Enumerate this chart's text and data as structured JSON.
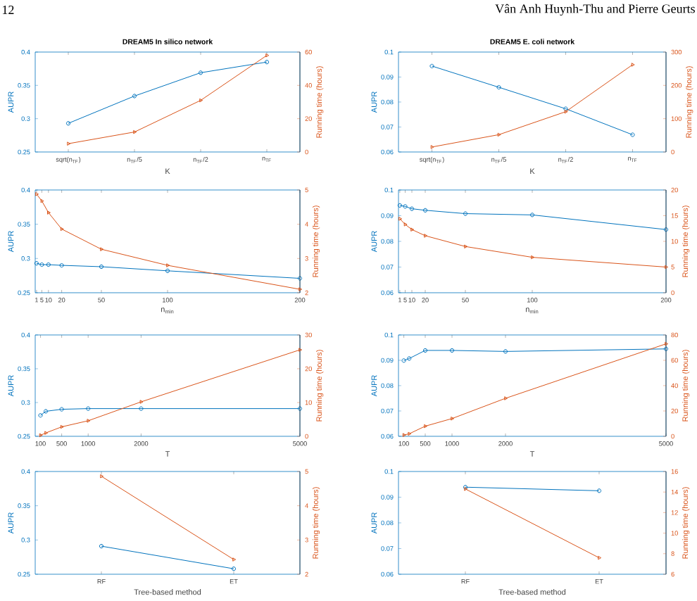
{
  "chart_data": [
    {
      "type": "line",
      "title": "DREAM5 In silico network",
      "xlabel": "K",
      "ylabel": "AUPR",
      "y2label": "Running time (hours)",
      "annotations": [
        "12",
        "Vân Anh Huynh-Thu and Pierre Geurts"
      ],
      "categories": [
        "sqrt(n$_{TF}$)",
        "n$_{TF}$/5",
        "n$_{TF}$/2",
        "n$_{TF}$"
      ],
      "ylim": [
        0.25,
        0.4
      ],
      "yticks": [
        0.25,
        0.3,
        0.35,
        0.4
      ],
      "y2lim": [
        0,
        60
      ],
      "y2ticks": [
        0,
        20,
        40,
        60
      ],
      "series": [
        {
          "color": "#0072bd",
          "marker": "circle",
          "line_style": "solid",
          "values": [
            0.293,
            0.334,
            0.369,
            0.385
          ]
        },
        {
          "color": "#d95319",
          "marker": "triangle",
          "line_style": "solid",
          "axis": "y2",
          "values": [
            5,
            12,
            31,
            58
          ]
        }
      ]
    },
    {
      "type": "line",
      "title": "DREAM5 E. coli network",
      "xlabel": "K",
      "ylabel": "AUPR",
      "y2label": "Running time (hours)",
      "categories": [
        "sqrt(n$_{TF}$)",
        "n$_{TF}$/5",
        "n$_{TF}$/2",
        "n$_{TF}$"
      ],
      "ylim": [
        0.06,
        0.1
      ],
      "yticks": [
        0.06,
        0.07,
        0.08,
        0.09,
        0.1
      ],
      "y2lim": [
        0,
        300
      ],
      "y2ticks": [
        0,
        100,
        200,
        300
      ],
      "series": [
        {
          "color": "#0072bd",
          "marker": "circle",
          "line_style": "solid",
          "values": [
            0.0944,
            0.0859,
            0.0773,
            0.0669
          ]
        },
        {
          "color": "#d95319",
          "marker": "triangle",
          "line_style": "solid",
          "axis": "y2",
          "values": [
            15,
            52,
            121,
            262
          ]
        }
      ]
    },
    {
      "type": "line",
      "xlabel": "n$_{min}$",
      "ylabel": "AUPR",
      "y2label": "Running time (hours)",
      "x": [
        1,
        5,
        10,
        20,
        50,
        100,
        200
      ],
      "xlim": [
        0,
        200
      ],
      "xticks": [
        1,
        5,
        10,
        20,
        50,
        100,
        200
      ],
      "ylim": [
        0.25,
        0.4
      ],
      "yticks": [
        0.25,
        0.3,
        0.35,
        0.4
      ],
      "y2lim": [
        2,
        5
      ],
      "y2ticks": [
        2,
        3,
        4,
        5
      ],
      "series": [
        {
          "color": "#0072bd",
          "marker": "circle",
          "line_style": "solid",
          "values": [
            0.293,
            0.291,
            0.291,
            0.29,
            0.288,
            0.282,
            0.271
          ]
        },
        {
          "color": "#d95319",
          "marker": "triangle",
          "line_style": "solid",
          "axis": "y2",
          "values": [
            4.88,
            4.68,
            4.34,
            3.86,
            3.27,
            2.8,
            2.1
          ]
        }
      ]
    },
    {
      "type": "line",
      "xlabel": "n$_{min}$",
      "ylabel": "AUPR",
      "y2label": "Running time (hours)",
      "x": [
        1,
        5,
        10,
        20,
        50,
        100,
        200
      ],
      "xlim": [
        0,
        200
      ],
      "xticks": [
        1,
        5,
        10,
        20,
        50,
        100,
        200
      ],
      "ylim": [
        0.06,
        0.1
      ],
      "yticks": [
        0.06,
        0.07,
        0.08,
        0.09,
        0.1
      ],
      "y2lim": [
        0,
        20
      ],
      "y2ticks": [
        0,
        5,
        10,
        15,
        20
      ],
      "series": [
        {
          "color": "#0072bd",
          "marker": "circle",
          "line_style": "solid",
          "values": [
            0.094,
            0.0936,
            0.0927,
            0.0921,
            0.0908,
            0.0903,
            0.0846
          ]
        },
        {
          "color": "#d95319",
          "marker": "triangle",
          "line_style": "solid",
          "axis": "y2",
          "values": [
            14.4,
            13.3,
            12.3,
            11.1,
            9.0,
            6.9,
            5.0
          ]
        }
      ]
    },
    {
      "type": "line",
      "xlabel": "T",
      "ylabel": "AUPR",
      "y2label": "Running time (hours)",
      "x": [
        100,
        200,
        500,
        1000,
        2000,
        5000
      ],
      "xlim": [
        0,
        5000
      ],
      "xticks": [
        100,
        500,
        1000,
        2000,
        5000
      ],
      "ylim": [
        0.25,
        0.4
      ],
      "yticks": [
        0.25,
        0.3,
        0.35,
        0.4
      ],
      "y2lim": [
        0,
        30
      ],
      "y2ticks": [
        0,
        10,
        20,
        30
      ],
      "series": [
        {
          "color": "#0072bd",
          "marker": "circle",
          "line_style": "solid",
          "values": [
            0.281,
            0.287,
            0.29,
            0.291,
            0.291,
            0.291
          ]
        },
        {
          "color": "#d95319",
          "marker": "triangle",
          "line_style": "solid",
          "axis": "y2",
          "values": [
            0.3,
            1.0,
            2.8,
            4.6,
            10.2,
            25.6
          ]
        }
      ]
    },
    {
      "type": "line",
      "xlabel": "T",
      "ylabel": "AUPR",
      "y2label": "Running time (hours)",
      "x": [
        100,
        200,
        500,
        1000,
        2000,
        5000
      ],
      "xlim": [
        0,
        5000
      ],
      "xticks": [
        100,
        500,
        1000,
        2000,
        5000
      ],
      "ylim": [
        0.06,
        0.1
      ],
      "yticks": [
        0.06,
        0.07,
        0.08,
        0.09,
        0.1
      ],
      "y2lim": [
        0,
        80
      ],
      "y2ticks": [
        0,
        20,
        40,
        60,
        80
      ],
      "series": [
        {
          "color": "#0072bd",
          "marker": "circle",
          "line_style": "solid",
          "values": [
            0.0899,
            0.0907,
            0.0939,
            0.0939,
            0.0935,
            0.0945
          ]
        },
        {
          "color": "#d95319",
          "marker": "triangle",
          "line_style": "solid",
          "axis": "y2",
          "values": [
            1,
            2,
            8,
            14,
            30,
            73
          ]
        }
      ]
    },
    {
      "type": "line",
      "xlabel": "Tree-based method",
      "ylabel": "AUPR",
      "y2label": "Running time (hours)",
      "categories": [
        "RF",
        "ET"
      ],
      "ylim": [
        0.25,
        0.4
      ],
      "yticks": [
        0.25,
        0.3,
        0.35,
        0.4
      ],
      "y2lim": [
        2,
        5
      ],
      "y2ticks": [
        2,
        3,
        4,
        5
      ],
      "series": [
        {
          "color": "#0072bd",
          "marker": "circle",
          "line_style": "solid",
          "values": [
            0.291,
            0.258
          ]
        },
        {
          "color": "#d95319",
          "marker": "triangle",
          "line_style": "solid",
          "axis": "y2",
          "values": [
            4.86,
            2.43
          ]
        }
      ]
    },
    {
      "type": "line",
      "xlabel": "Tree-based method",
      "ylabel": "AUPR",
      "y2label": "Running time (hours)",
      "categories": [
        "RF",
        "ET"
      ],
      "ylim": [
        0.06,
        0.1
      ],
      "yticks": [
        0.06,
        0.07,
        0.08,
        0.09,
        0.1
      ],
      "y2lim": [
        6,
        16
      ],
      "y2ticks": [
        6,
        8,
        10,
        12,
        14,
        16
      ],
      "series": [
        {
          "color": "#0072bd",
          "marker": "circle",
          "line_style": "solid",
          "values": [
            0.0939,
            0.0925
          ]
        },
        {
          "color": "#d95319",
          "marker": "triangle",
          "line_style": "solid",
          "axis": "y2",
          "values": [
            14.3,
            7.6
          ]
        }
      ]
    }
  ]
}
